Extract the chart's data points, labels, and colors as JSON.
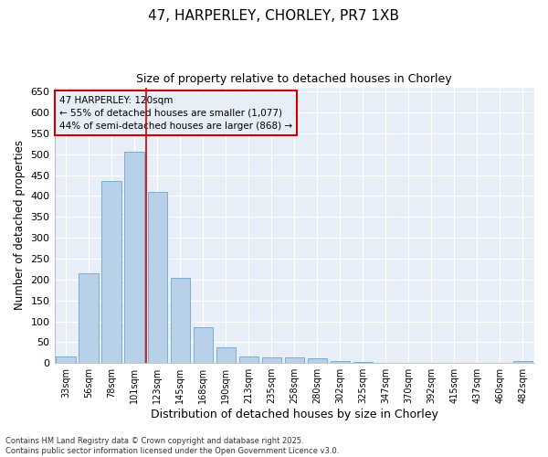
{
  "title_line1": "47, HARPERLEY, CHORLEY, PR7 1XB",
  "title_line2": "Size of property relative to detached houses in Chorley",
  "xlabel": "Distribution of detached houses by size in Chorley",
  "ylabel": "Number of detached properties",
  "categories": [
    "33sqm",
    "56sqm",
    "78sqm",
    "101sqm",
    "123sqm",
    "145sqm",
    "168sqm",
    "190sqm",
    "213sqm",
    "235sqm",
    "258sqm",
    "280sqm",
    "302sqm",
    "325sqm",
    "347sqm",
    "370sqm",
    "392sqm",
    "415sqm",
    "437sqm",
    "460sqm",
    "482sqm"
  ],
  "values": [
    15,
    215,
    435,
    505,
    410,
    205,
    85,
    37,
    15,
    14,
    14,
    11,
    5,
    2,
    1,
    1,
    0,
    0,
    0,
    0,
    4
  ],
  "bar_color": "#b8d0e8",
  "bar_edge_color": "#7aadd4",
  "vline_color": "#cc0000",
  "vline_xindex": 3,
  "annotation_title": "47 HARPERLEY: 120sqm",
  "annotation_line1": "← 55% of detached houses are smaller (1,077)",
  "annotation_line2": "44% of semi-detached houses are larger (868) →",
  "annotation_box_color": "#cc0000",
  "ylim": [
    0,
    660
  ],
  "yticks": [
    0,
    50,
    100,
    150,
    200,
    250,
    300,
    350,
    400,
    450,
    500,
    550,
    600,
    650
  ],
  "footer_line1": "Contains HM Land Registry data © Crown copyright and database right 2025.",
  "footer_line2": "Contains public sector information licensed under the Open Government Licence v3.0.",
  "bg_color": "#e8eef7",
  "plot_bg_color": "#e8eef7",
  "grid_color": "#ffffff",
  "fig_bg_color": "#ffffff"
}
